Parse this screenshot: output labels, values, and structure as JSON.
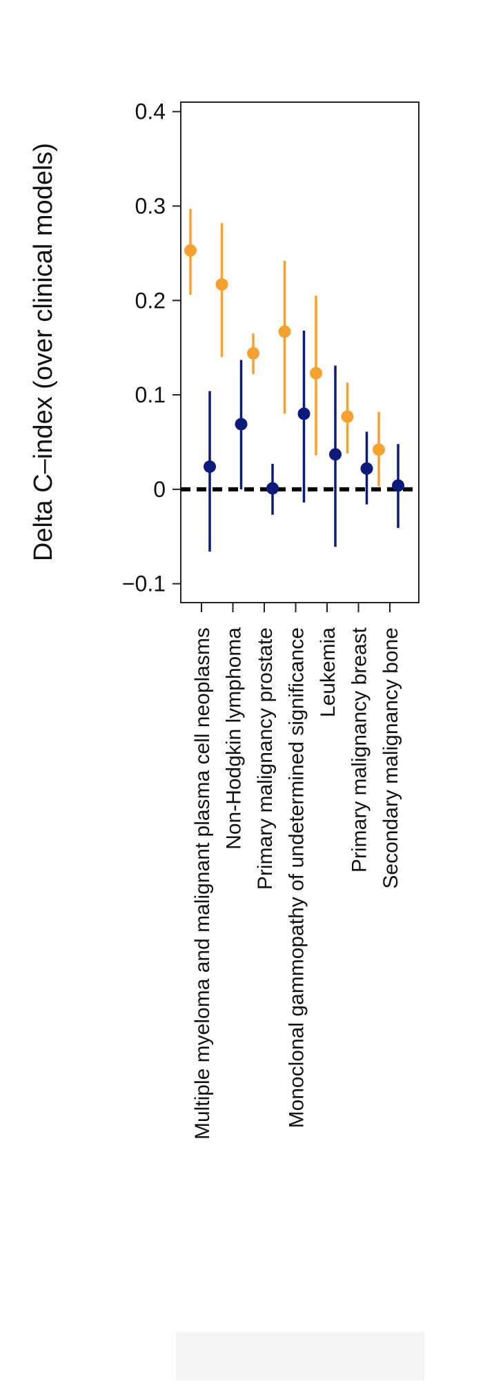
{
  "chart_data": {
    "type": "scatter",
    "title": "",
    "ylabel": "Delta C–index (over clinical models)",
    "xlabel": "",
    "ylim": [
      -0.12,
      0.41
    ],
    "yticks": [
      -0.1,
      0,
      0.1,
      0.2,
      0.3,
      0.4
    ],
    "ytick_labels": [
      "−0.1",
      "0",
      "0.1",
      "0.2",
      "0.3",
      "0.4"
    ],
    "categories": [
      "Multiple myeloma and malignant plasma cell neoplasms",
      "Non-Hodgkin lymphoma",
      "Primary malignancy prostate",
      "Monoclonal gammopathy of undetermined significance",
      "Leukemia",
      "Primary malignancy breast",
      "Secondary malignancy bone"
    ],
    "reference_line": 0,
    "grid": false,
    "legend": "none",
    "series": [
      {
        "color": "#f7a22e",
        "values": [
          0.253,
          0.217,
          0.144,
          0.167,
          0.123,
          0.077,
          0.042
        ],
        "lower": [
          0.206,
          0.14,
          0.122,
          0.08,
          0.036,
          0.038,
          0.003
        ],
        "upper": [
          0.297,
          0.282,
          0.165,
          0.242,
          0.205,
          0.113,
          0.082
        ]
      },
      {
        "color": "#0c1a7a",
        "values": [
          0.024,
          0.069,
          0.001,
          0.08,
          0.037,
          0.022,
          0.004
        ],
        "lower": [
          -0.066,
          0.0,
          -0.027,
          -0.014,
          -0.061,
          -0.016,
          -0.041
        ],
        "upper": [
          0.104,
          0.137,
          0.027,
          0.168,
          0.131,
          0.061,
          0.048
        ]
      }
    ]
  }
}
